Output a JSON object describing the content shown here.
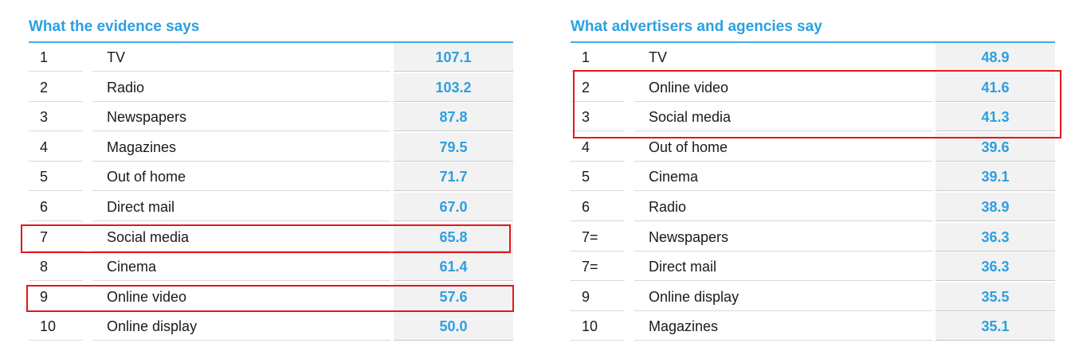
{
  "left_table": {
    "title": "What the evidence says",
    "rows": [
      {
        "rank": "1",
        "label": "TV",
        "value": "107.1"
      },
      {
        "rank": "2",
        "label": "Radio",
        "value": "103.2"
      },
      {
        "rank": "3",
        "label": "Newspapers",
        "value": "87.8"
      },
      {
        "rank": "4",
        "label": "Magazines",
        "value": "79.5"
      },
      {
        "rank": "5",
        "label": "Out of home",
        "value": "71.7"
      },
      {
        "rank": "6",
        "label": "Direct mail",
        "value": "67.0"
      },
      {
        "rank": "7",
        "label": "Social media",
        "value": "65.8"
      },
      {
        "rank": "8",
        "label": "Cinema",
        "value": "61.4"
      },
      {
        "rank": "9",
        "label": "Online video",
        "value": "57.6"
      },
      {
        "rank": "10",
        "label": "Online display",
        "value": "50.0"
      }
    ],
    "highlighted_ranks": [
      "7",
      "9"
    ]
  },
  "right_table": {
    "title": "What advertisers and agencies say",
    "rows": [
      {
        "rank": "1",
        "label": "TV",
        "value": "48.9"
      },
      {
        "rank": "2",
        "label": "Online video",
        "value": "41.6"
      },
      {
        "rank": "3",
        "label": "Social media",
        "value": "41.3"
      },
      {
        "rank": "4",
        "label": "Out of home",
        "value": "39.6"
      },
      {
        "rank": "5",
        "label": "Cinema",
        "value": "39.1"
      },
      {
        "rank": "6",
        "label": "Radio",
        "value": "38.9"
      },
      {
        "rank": "7=",
        "label": "Newspapers",
        "value": "36.3"
      },
      {
        "rank": "7=",
        "label": "Direct mail",
        "value": "36.3"
      },
      {
        "rank": "9",
        "label": "Online display",
        "value": "35.5"
      },
      {
        "rank": "10",
        "label": "Magazines",
        "value": "35.1"
      }
    ],
    "highlighted_ranks": [
      "2",
      "3"
    ]
  },
  "colors": {
    "accent": "#2d9fe0",
    "highlight": "#e5161c",
    "value_cell_bg": "#f2f2f2"
  }
}
